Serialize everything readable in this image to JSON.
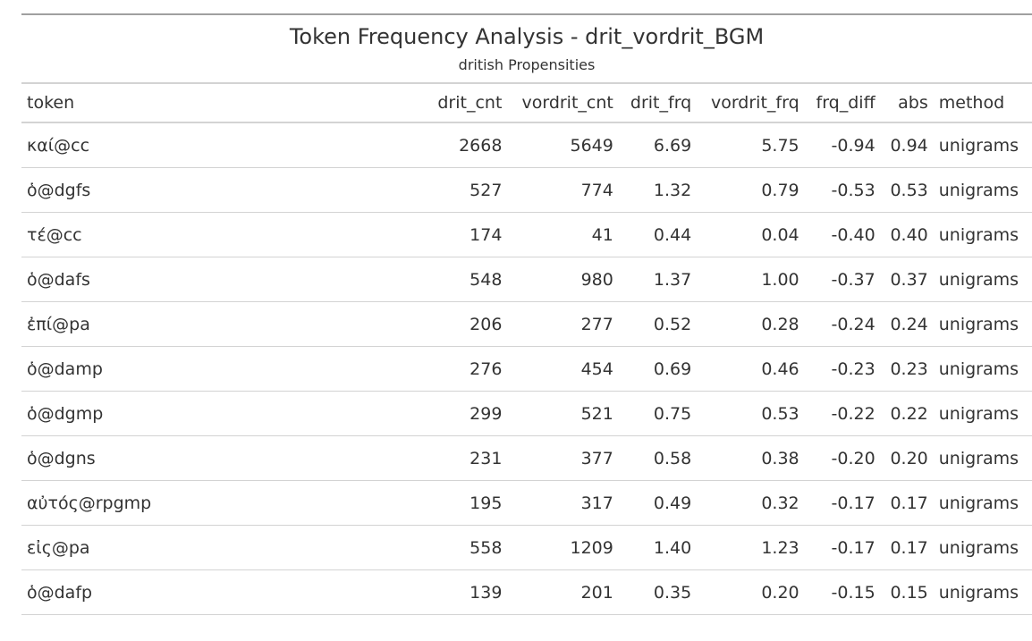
{
  "title": "Token Frequency Analysis - drit_vordrit_BGM",
  "subtitle": "dritish Propensities",
  "columns": [
    "token",
    "drit_cnt",
    "vordrit_cnt",
    "drit_frq",
    "vordrit_frq",
    "frq_diff",
    "abs",
    "method"
  ],
  "rows": [
    {
      "token": "καί@cc",
      "drit_cnt": "2668",
      "vordrit_cnt": "5649",
      "drit_frq": "6.69",
      "vordrit_frq": "5.75",
      "frq_diff": "-0.94",
      "abs": "0.94",
      "method": "unigrams"
    },
    {
      "token": "ὁ@dgfs",
      "drit_cnt": "527",
      "vordrit_cnt": "774",
      "drit_frq": "1.32",
      "vordrit_frq": "0.79",
      "frq_diff": "-0.53",
      "abs": "0.53",
      "method": "unigrams"
    },
    {
      "token": "τέ@cc",
      "drit_cnt": "174",
      "vordrit_cnt": "41",
      "drit_frq": "0.44",
      "vordrit_frq": "0.04",
      "frq_diff": "-0.40",
      "abs": "0.40",
      "method": "unigrams"
    },
    {
      "token": "ὁ@dafs",
      "drit_cnt": "548",
      "vordrit_cnt": "980",
      "drit_frq": "1.37",
      "vordrit_frq": "1.00",
      "frq_diff": "-0.37",
      "abs": "0.37",
      "method": "unigrams"
    },
    {
      "token": "ἐπί@pa",
      "drit_cnt": "206",
      "vordrit_cnt": "277",
      "drit_frq": "0.52",
      "vordrit_frq": "0.28",
      "frq_diff": "-0.24",
      "abs": "0.24",
      "method": "unigrams"
    },
    {
      "token": "ὁ@damp",
      "drit_cnt": "276",
      "vordrit_cnt": "454",
      "drit_frq": "0.69",
      "vordrit_frq": "0.46",
      "frq_diff": "-0.23",
      "abs": "0.23",
      "method": "unigrams"
    },
    {
      "token": "ὁ@dgmp",
      "drit_cnt": "299",
      "vordrit_cnt": "521",
      "drit_frq": "0.75",
      "vordrit_frq": "0.53",
      "frq_diff": "-0.22",
      "abs": "0.22",
      "method": "unigrams"
    },
    {
      "token": "ὁ@dgns",
      "drit_cnt": "231",
      "vordrit_cnt": "377",
      "drit_frq": "0.58",
      "vordrit_frq": "0.38",
      "frq_diff": "-0.20",
      "abs": "0.20",
      "method": "unigrams"
    },
    {
      "token": "αὐτός@rpgmp",
      "drit_cnt": "195",
      "vordrit_cnt": "317",
      "drit_frq": "0.49",
      "vordrit_frq": "0.32",
      "frq_diff": "-0.17",
      "abs": "0.17",
      "method": "unigrams"
    },
    {
      "token": "εἰς@pa",
      "drit_cnt": "558",
      "vordrit_cnt": "1209",
      "drit_frq": "1.40",
      "vordrit_frq": "1.23",
      "frq_diff": "-0.17",
      "abs": "0.17",
      "method": "unigrams"
    },
    {
      "token": "ὁ@dafp",
      "drit_cnt": "139",
      "vordrit_cnt": "201",
      "drit_frq": "0.35",
      "vordrit_frq": "0.20",
      "frq_diff": "-0.15",
      "abs": "0.15",
      "method": "unigrams"
    }
  ]
}
